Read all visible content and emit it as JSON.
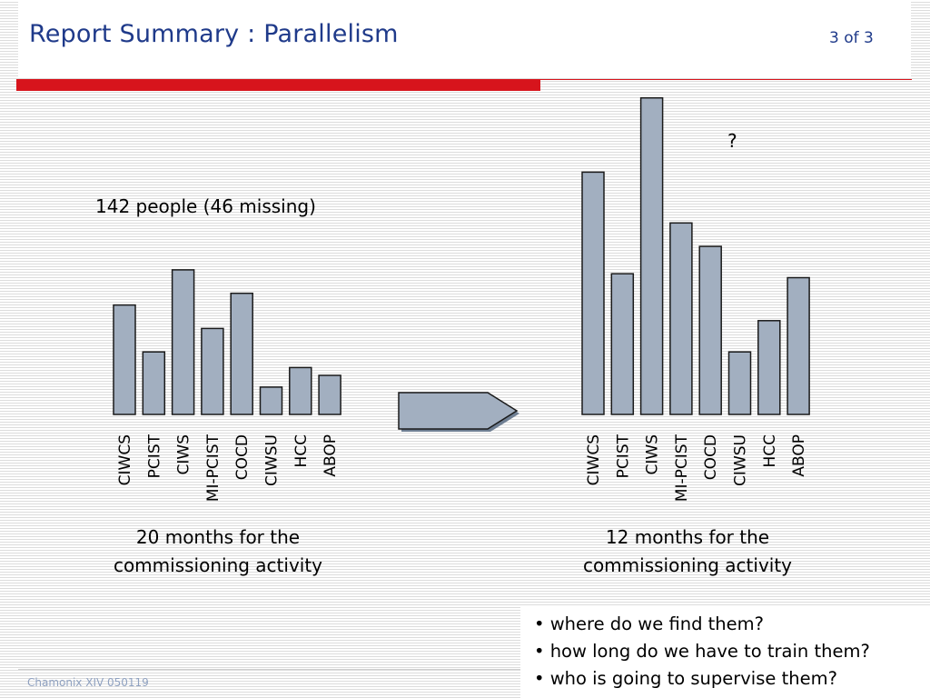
{
  "header": {
    "title": "Report Summary : Parallelism",
    "page": "3 of 3"
  },
  "colors": {
    "title": "#1f3a8a",
    "accent_bar": "#d7141c",
    "bar_fill": "#a2afc0",
    "footer": "#8fa1c0"
  },
  "left_annotation": "142 people (46 missing)",
  "right_annotation": "?",
  "left_caption": [
    "20 months for the",
    "commissioning activity"
  ],
  "right_caption": [
    "12 months for the",
    "commissioning activity"
  ],
  "arrow_icon": "right-arrow-icon",
  "bullets": [
    "• where do we find them?",
    "• how long do we have to train them?",
    "• who is going to supervise them?"
  ],
  "footer": "Chamonix XIV 050119",
  "chart_data": [
    {
      "type": "bar",
      "categories": [
        "CIWCS",
        "PCIST",
        "CIWS",
        "MI-PCIST",
        "COCD",
        "CIWSU",
        "HCC",
        "ABOP"
      ],
      "values": [
        28,
        16,
        37,
        22,
        31,
        7,
        12,
        10
      ],
      "title": "",
      "xlabel": "",
      "ylabel": "",
      "grid": false
    },
    {
      "type": "bar",
      "categories": [
        "CIWCS",
        "PCIST",
        "CIWS",
        "MI-PCIST",
        "COCD",
        "CIWSU",
        "HCC",
        "ABOP"
      ],
      "values": [
        62,
        36,
        81,
        49,
        43,
        16,
        24,
        35
      ],
      "title": "",
      "xlabel": "",
      "ylabel": "",
      "grid": false
    }
  ]
}
